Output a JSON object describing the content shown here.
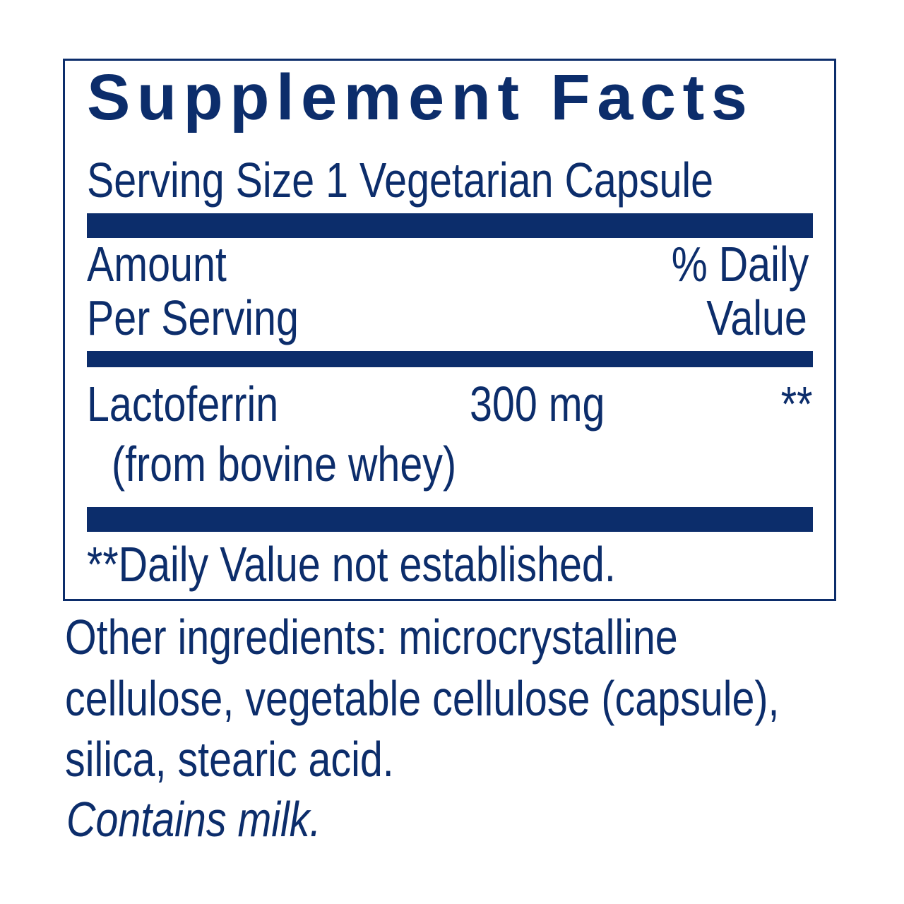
{
  "label": {
    "title": "Supplement Facts",
    "serving_size": "Serving Size 1 Vegetarian Capsule",
    "header": {
      "amount_line1": "Amount",
      "amount_line2": "Per Serving",
      "dv_line1": "% Daily",
      "dv_line2": "Value"
    },
    "ingredients": [
      {
        "name": "Lactoferrin",
        "source": "(from bovine whey)",
        "amount": "300 mg",
        "daily_value": "**"
      }
    ],
    "footnote": "**Daily Value not established."
  },
  "other": {
    "lines": [
      "Other ingredients: microcrystalline",
      "cellulose, vegetable cellulose (capsule),",
      "silica, stearic acid."
    ],
    "allergen": "Contains milk."
  },
  "colors": {
    "text": "#0c2d6b",
    "background": "#ffffff"
  }
}
